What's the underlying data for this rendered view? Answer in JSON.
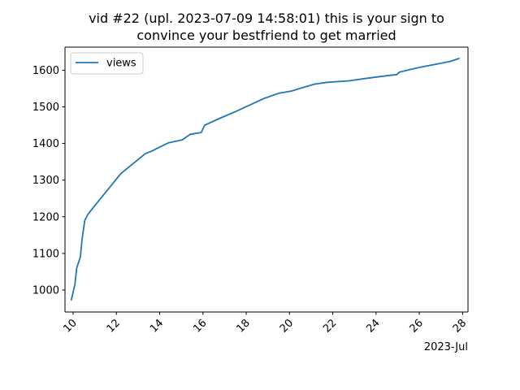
{
  "chart_data": {
    "type": "line",
    "title_lines": [
      "vid #22 (upl. 2023-07-09 14:58:01) this is your sign to",
      "convince your bestfriend to get married"
    ],
    "xlabel": "",
    "ylabel": "",
    "x_axis_type": "date",
    "x_offset_label": "2023-Jul",
    "xlim": [
      "2023-07-09 15:00",
      "2023-07-28 06:00"
    ],
    "ylim": [
      940,
      1663
    ],
    "x_ticks": [
      {
        "label": "10",
        "value": "2023-07-10 00:00"
      },
      {
        "label": "12",
        "value": "2023-07-12 00:00"
      },
      {
        "label": "14",
        "value": "2023-07-14 00:00"
      },
      {
        "label": "16",
        "value": "2023-07-16 00:00"
      },
      {
        "label": "18",
        "value": "2023-07-18 00:00"
      },
      {
        "label": "20",
        "value": "2023-07-20 00:00"
      },
      {
        "label": "22",
        "value": "2023-07-22 00:00"
      },
      {
        "label": "24",
        "value": "2023-07-24 00:00"
      },
      {
        "label": "26",
        "value": "2023-07-26 00:00"
      },
      {
        "label": "28",
        "value": "2023-07-28 00:00"
      }
    ],
    "y_ticks": [
      1000,
      1100,
      1200,
      1300,
      1400,
      1500,
      1600
    ],
    "grid": false,
    "legend": {
      "placement": "top-left",
      "entries": [
        "views"
      ]
    },
    "series": [
      {
        "name": "views",
        "color": "#1f77b4",
        "x": [
          "2023-07-09 22:00",
          "2023-07-10 02:00",
          "2023-07-10 04:00",
          "2023-07-10 08:00",
          "2023-07-10 10:00",
          "2023-07-10 13:00",
          "2023-07-10 16:00",
          "2023-07-10 19:00",
          "2023-07-12 05:00",
          "2023-07-13 08:00",
          "2023-07-13 16:00",
          "2023-07-14 00:00",
          "2023-07-14 10:00",
          "2023-07-15 01:00",
          "2023-07-15 10:00",
          "2023-07-15 22:00",
          "2023-07-16 02:00",
          "2023-07-16 20:00",
          "2023-07-17 12:00",
          "2023-07-18 04:00",
          "2023-07-18 20:00",
          "2023-07-19 12:00",
          "2023-07-20 02:00",
          "2023-07-20 14:00",
          "2023-07-21 04:00",
          "2023-07-21 18:00",
          "2023-07-22 18:00",
          "2023-07-23 14:00",
          "2023-07-24 12:00",
          "2023-07-24 23:00",
          "2023-07-25 02:00",
          "2023-07-25 14:00",
          "2023-07-26 05:00",
          "2023-07-26 20:00",
          "2023-07-27 10:00",
          "2023-07-27 20:00"
        ],
        "values": [
          973,
          1015,
          1060,
          1090,
          1140,
          1190,
          1205,
          1215,
          1318,
          1372,
          1380,
          1390,
          1402,
          1410,
          1425,
          1430,
          1450,
          1470,
          1487,
          1505,
          1523,
          1537,
          1543,
          1552,
          1562,
          1567,
          1571,
          1578,
          1585,
          1588,
          1595,
          1602,
          1610,
          1617,
          1624,
          1632
        ]
      }
    ]
  }
}
